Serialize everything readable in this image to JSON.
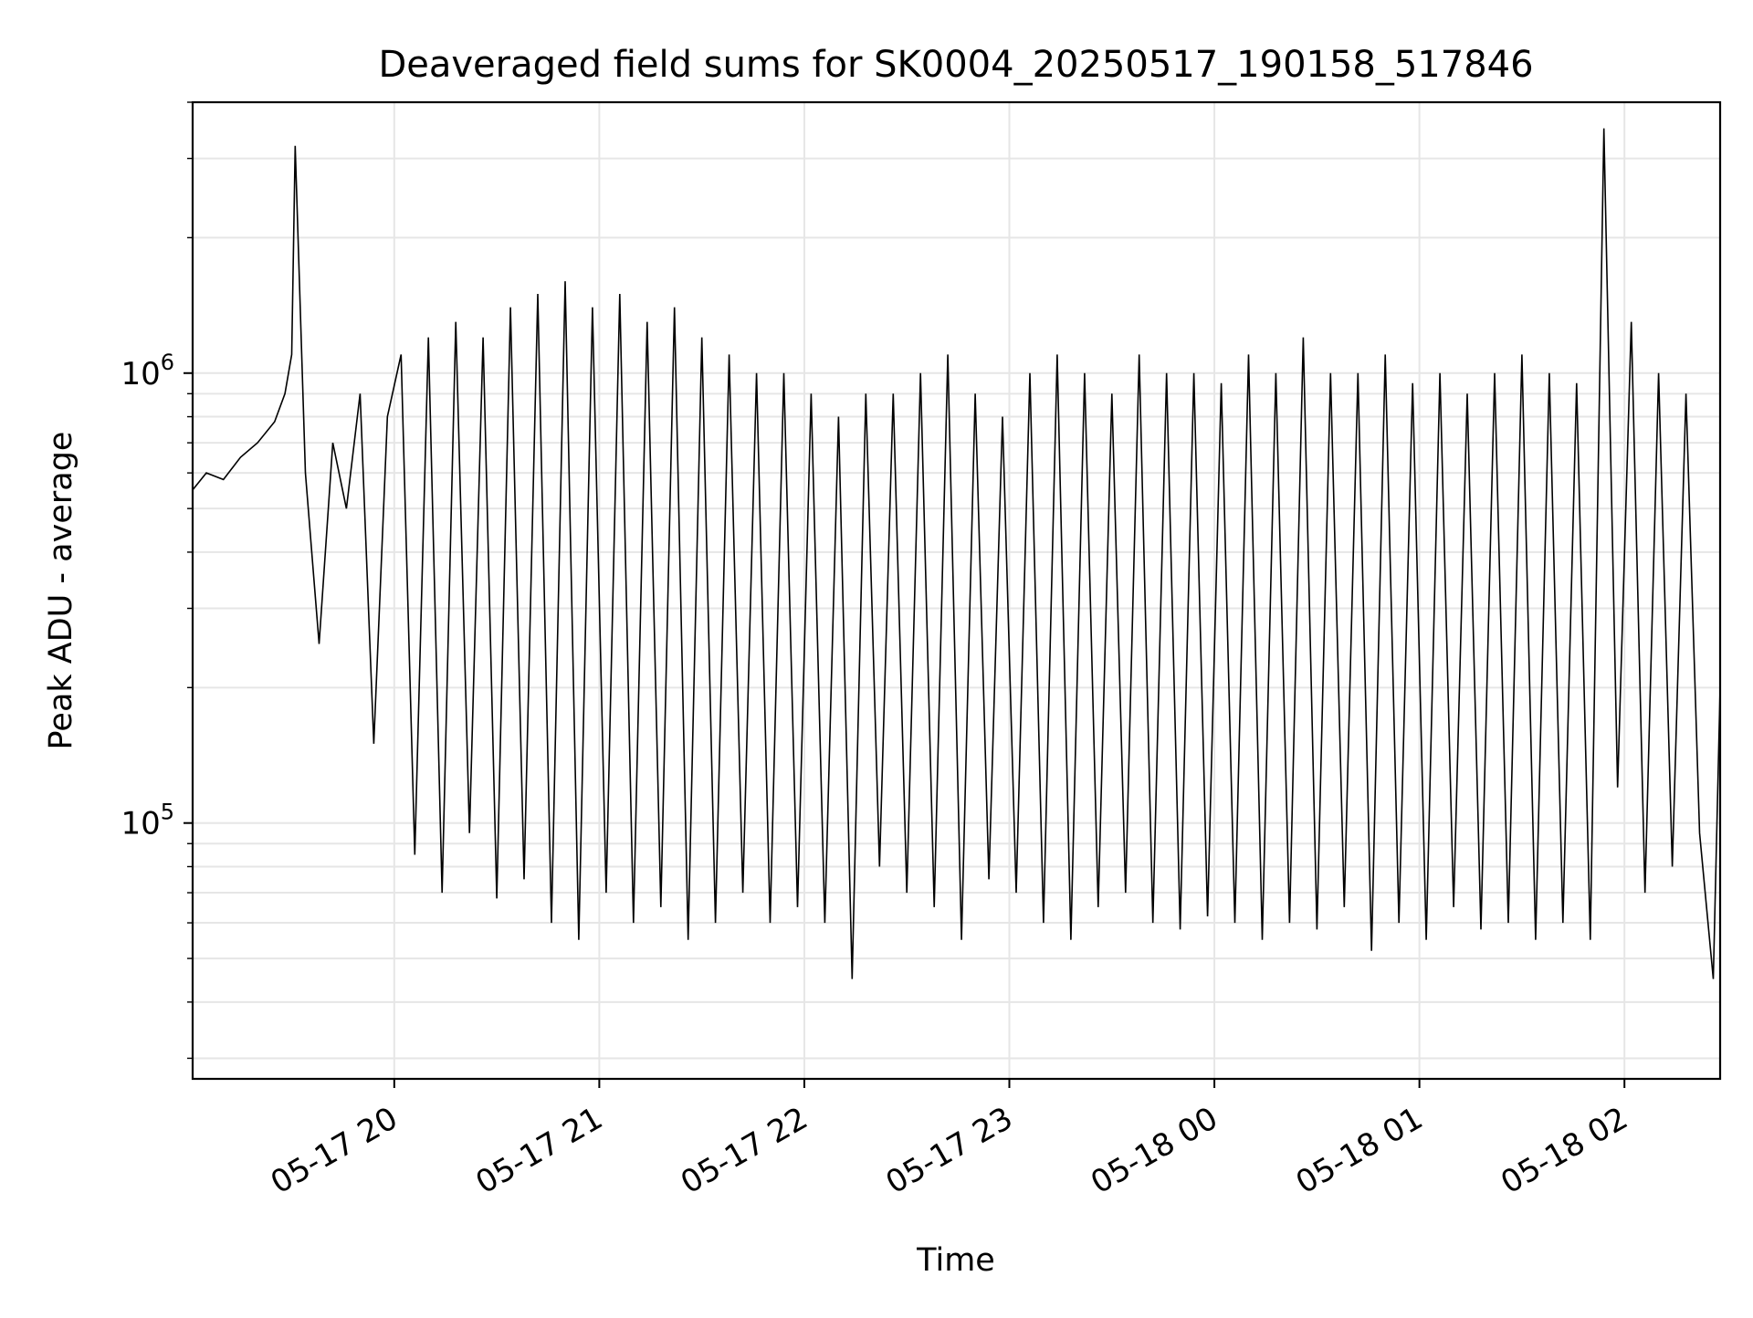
{
  "chart_data": {
    "type": "line",
    "title": "Deaveraged field sums for SK0004_20250517_190158_517846",
    "xlabel": "Time",
    "ylabel": "Peak ADU - average",
    "yscale": "log",
    "xlim": [
      "2025-05-17 19:01",
      "2025-05-18 02:28"
    ],
    "ylim": [
      27000,
      4000000
    ],
    "grid": true,
    "x_tick_labels": [
      "05-17 20",
      "05-17 21",
      "05-17 22",
      "05-17 23",
      "05-18 00",
      "05-18 01",
      "05-18 02"
    ],
    "y_tick_labels": [
      {
        "base": "10",
        "exp": "5"
      },
      {
        "base": "10",
        "exp": "6"
      }
    ],
    "line_color": "#000000",
    "series": [
      {
        "time": [
          "2025-05-17 19:01",
          "2025-05-17 19:05",
          "2025-05-17 19:10",
          "2025-05-17 19:15",
          "2025-05-17 19:20",
          "2025-05-17 19:25",
          "2025-05-17 19:28",
          "2025-05-17 19:30",
          "2025-05-17 19:31",
          "2025-05-17 19:34",
          "2025-05-17 19:38",
          "2025-05-17 19:42",
          "2025-05-17 19:46",
          "2025-05-17 19:50",
          "2025-05-17 19:54",
          "2025-05-17 19:58",
          "2025-05-17 20:02",
          "2025-05-17 20:06",
          "2025-05-17 20:10",
          "2025-05-17 20:14",
          "2025-05-17 20:18",
          "2025-05-17 20:22",
          "2025-05-17 20:26",
          "2025-05-17 20:30",
          "2025-05-17 20:34",
          "2025-05-17 20:38",
          "2025-05-17 20:42",
          "2025-05-17 20:46",
          "2025-05-17 20:50",
          "2025-05-17 20:54",
          "2025-05-17 20:58",
          "2025-05-17 21:02",
          "2025-05-17 21:06",
          "2025-05-17 21:10",
          "2025-05-17 21:14",
          "2025-05-17 21:18",
          "2025-05-17 21:22",
          "2025-05-17 21:26",
          "2025-05-17 21:30",
          "2025-05-17 21:34",
          "2025-05-17 21:38",
          "2025-05-17 21:42",
          "2025-05-17 21:46",
          "2025-05-17 21:50",
          "2025-05-17 21:54",
          "2025-05-17 21:58",
          "2025-05-17 22:02",
          "2025-05-17 22:06",
          "2025-05-17 22:10",
          "2025-05-17 22:14",
          "2025-05-17 22:18",
          "2025-05-17 22:22",
          "2025-05-17 22:26",
          "2025-05-17 22:30",
          "2025-05-17 22:34",
          "2025-05-17 22:38",
          "2025-05-17 22:42",
          "2025-05-17 22:46",
          "2025-05-17 22:50",
          "2025-05-17 22:54",
          "2025-05-17 22:58",
          "2025-05-17 23:02",
          "2025-05-17 23:06",
          "2025-05-17 23:10",
          "2025-05-17 23:14",
          "2025-05-17 23:18",
          "2025-05-17 23:22",
          "2025-05-17 23:26",
          "2025-05-17 23:30",
          "2025-05-17 23:34",
          "2025-05-17 23:38",
          "2025-05-17 23:42",
          "2025-05-17 23:46",
          "2025-05-17 23:50",
          "2025-05-17 23:54",
          "2025-05-17 23:58",
          "2025-05-18 00:02",
          "2025-05-18 00:06",
          "2025-05-18 00:10",
          "2025-05-18 00:14",
          "2025-05-18 00:18",
          "2025-05-18 00:22",
          "2025-05-18 00:26",
          "2025-05-18 00:30",
          "2025-05-18 00:34",
          "2025-05-18 00:38",
          "2025-05-18 00:42",
          "2025-05-18 00:46",
          "2025-05-18 00:50",
          "2025-05-18 00:54",
          "2025-05-18 00:58",
          "2025-05-18 01:02",
          "2025-05-18 01:06",
          "2025-05-18 01:10",
          "2025-05-18 01:14",
          "2025-05-18 01:18",
          "2025-05-18 01:22",
          "2025-05-18 01:26",
          "2025-05-18 01:30",
          "2025-05-18 01:34",
          "2025-05-18 01:38",
          "2025-05-18 01:42",
          "2025-05-18 01:46",
          "2025-05-18 01:50",
          "2025-05-18 01:54",
          "2025-05-18 01:58",
          "2025-05-18 02:02",
          "2025-05-18 02:06",
          "2025-05-18 02:10",
          "2025-05-18 02:14",
          "2025-05-18 02:18",
          "2025-05-18 02:22",
          "2025-05-18 02:26",
          "2025-05-18 02:28"
        ],
        "values": [
          550000,
          600000,
          580000,
          650000,
          700000,
          780000,
          900000,
          1100000,
          3200000,
          600000,
          250000,
          700000,
          500000,
          900000,
          150000,
          800000,
          1100000,
          85000,
          1200000,
          70000,
          1300000,
          95000,
          1200000,
          68000,
          1400000,
          75000,
          1500000,
          60000,
          1600000,
          55000,
          1400000,
          70000,
          1500000,
          60000,
          1300000,
          65000,
          1400000,
          55000,
          1200000,
          60000,
          1100000,
          70000,
          1000000,
          60000,
          1000000,
          65000,
          900000,
          60000,
          800000,
          45000,
          900000,
          80000,
          900000,
          70000,
          1000000,
          65000,
          1100000,
          55000,
          900000,
          75000,
          800000,
          70000,
          1000000,
          60000,
          1100000,
          55000,
          1000000,
          65000,
          900000,
          70000,
          1100000,
          60000,
          1000000,
          58000,
          1000000,
          62000,
          950000,
          60000,
          1100000,
          55000,
          1000000,
          60000,
          1200000,
          58000,
          1000000,
          65000,
          1000000,
          52000,
          1100000,
          60000,
          950000,
          55000,
          1000000,
          65000,
          900000,
          58000,
          1000000,
          60000,
          1100000,
          55000,
          1000000,
          60000,
          950000,
          55000,
          3500000,
          120000,
          1300000,
          70000,
          1000000,
          80000,
          900000,
          95000,
          45000,
          200000
        ]
      }
    ]
  }
}
